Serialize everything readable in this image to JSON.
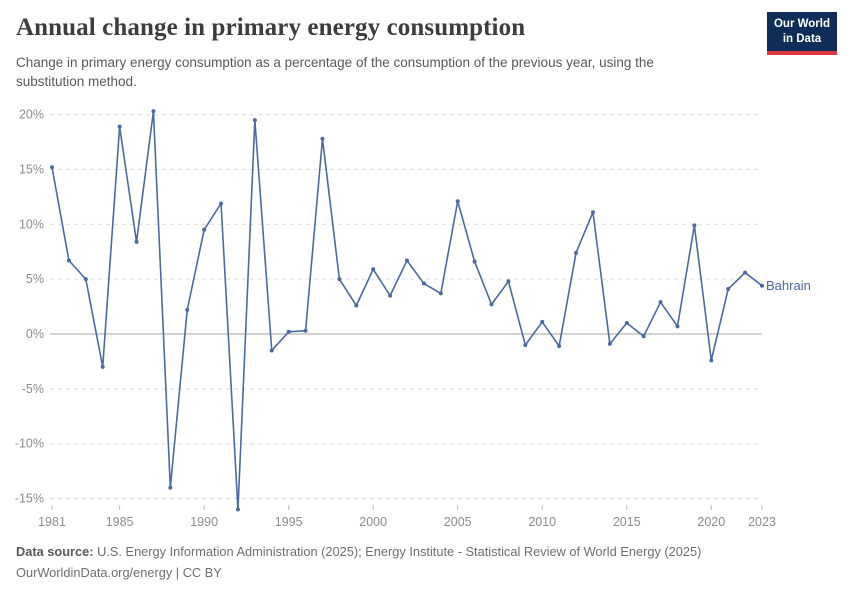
{
  "header": {
    "title": "Annual change in primary energy consumption",
    "subtitle": "Change in primary energy consumption as a percentage of the consumption of the previous year, using the substitution method.",
    "logo": {
      "line1": "Our World",
      "line2": "in Data",
      "bg_color": "#102d59",
      "stripe_color": "#e0373f"
    }
  },
  "chart_data": {
    "type": "line",
    "title": "Annual change in primary energy consumption",
    "xlabel": "",
    "ylabel": "",
    "grid": "horizontal-dashed",
    "zero_line": true,
    "legend_position": "end-of-line-label",
    "x_ticks": [
      1981,
      1985,
      1990,
      1995,
      2000,
      2005,
      2010,
      2015,
      2020,
      2023
    ],
    "y_ticks": [
      20,
      15,
      10,
      5,
      0,
      -5,
      -10,
      -15
    ],
    "y_tick_suffix": "%",
    "xlim": [
      1981,
      2023
    ],
    "ylim": [
      -16.5,
      20.5
    ],
    "series": [
      {
        "name": "Bahrain",
        "color": "#4a6aa2",
        "x": [
          1981,
          1982,
          1983,
          1984,
          1985,
          1986,
          1987,
          1988,
          1989,
          1990,
          1991,
          1992,
          1993,
          1994,
          1995,
          1996,
          1997,
          1998,
          1999,
          2000,
          2001,
          2002,
          2003,
          2004,
          2005,
          2006,
          2007,
          2008,
          2009,
          2010,
          2011,
          2012,
          2013,
          2014,
          2015,
          2016,
          2017,
          2018,
          2019,
          2020,
          2021,
          2022,
          2023
        ],
        "values": [
          15.2,
          6.7,
          5.0,
          -3.0,
          18.9,
          8.4,
          20.3,
          -14.0,
          2.2,
          9.5,
          11.9,
          -16.0,
          19.5,
          -1.5,
          0.2,
          0.3,
          17.8,
          5.0,
          2.6,
          5.9,
          3.5,
          6.7,
          4.6,
          3.7,
          12.1,
          6.6,
          2.7,
          4.8,
          -1.0,
          1.1,
          -1.1,
          7.4,
          11.1,
          -0.9,
          1.0,
          -0.2,
          2.9,
          0.7,
          9.9,
          -2.4,
          4.1,
          5.6,
          4.4
        ]
      }
    ]
  },
  "colors": {
    "grid_line": "#dcdcdc",
    "zero_line": "#a6a6a6",
    "tick_mark": "#bdbdbd",
    "tick_text": "#8c8c8c"
  },
  "footer": {
    "source_label": "Data source:",
    "source_text": " U.S. Energy Information Administration (2025); Energy Institute - Statistical Review of World Energy (2025)",
    "link_text": "OurWorldinData.org/energy",
    "license_sep": " | ",
    "license_text": "CC BY"
  }
}
